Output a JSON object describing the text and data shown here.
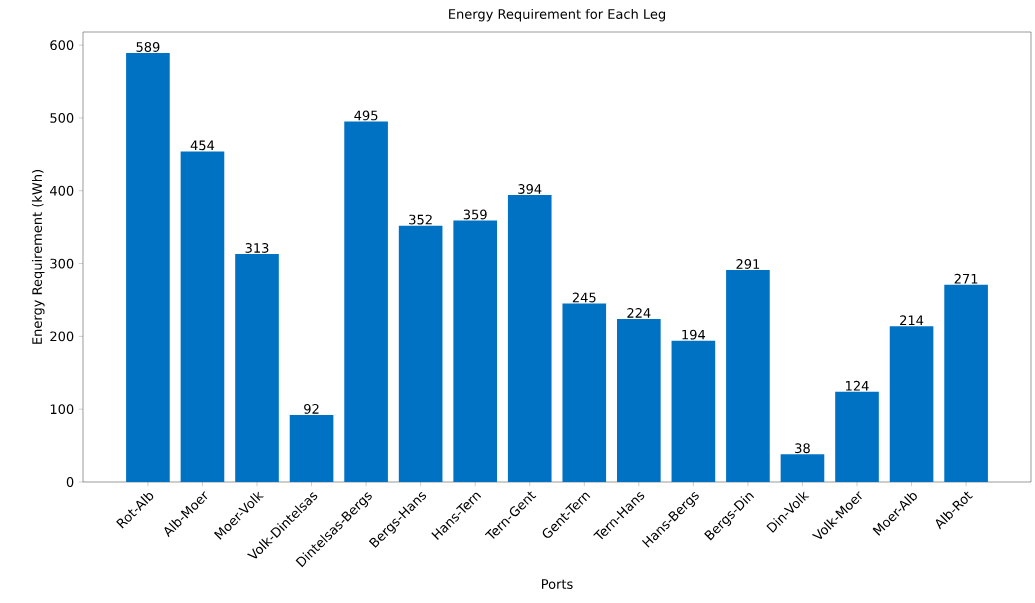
{
  "chart_data": {
    "type": "bar",
    "title": "Energy Requirement for Each Leg",
    "xlabel": "Ports",
    "ylabel": "Energy Requirement (kWh)",
    "categories": [
      "Rot-Alb",
      "Alb-Moer",
      "Moer-Volk",
      "Volk-Dintelsas",
      "Dintelsas-Bergs",
      "Bergs-Hans",
      "Hans-Tern",
      "Tern-Gent",
      "Gent-Tern",
      "Tern-Hans",
      "Hans-Bergs",
      "Bergs-Din",
      "Din-Volk",
      "Volk-Moer",
      "Moer-Alb",
      "Alb-Rot"
    ],
    "values": [
      589,
      454,
      313,
      92,
      495,
      352,
      359,
      394,
      245,
      224,
      194,
      291,
      38,
      124,
      214,
      271
    ],
    "color": "#0072c3",
    "ylim": [
      0,
      618
    ],
    "yticks": [
      0,
      100,
      200,
      300,
      400,
      500,
      600
    ],
    "data_labels": true,
    "grid": false
  }
}
